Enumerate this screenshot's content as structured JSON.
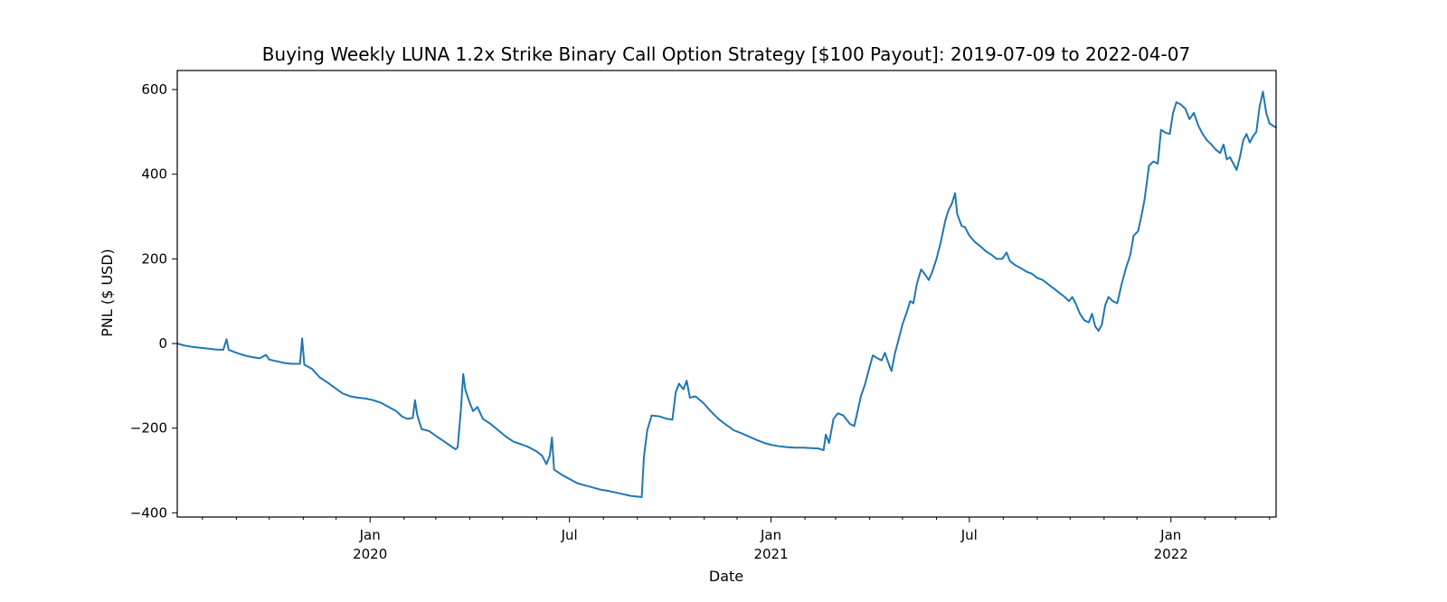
{
  "chart_data": {
    "type": "line",
    "title": "Buying Weekly LUNA 1.2x Strike Binary Call Option Strategy [$100 Payout]: 2019-07-09 to 2022-04-07",
    "xlabel": "Date",
    "ylabel": "PNL ($ USD)",
    "xlim": [
      "2019-07-09",
      "2022-04-07"
    ],
    "ylim": [
      -410,
      645
    ],
    "grid": false,
    "line_color": "#1f77b4",
    "y_ticks": [
      {
        "value": -400,
        "label": "−400"
      },
      {
        "value": -200,
        "label": "−200"
      },
      {
        "value": 0,
        "label": "0"
      },
      {
        "value": 200,
        "label": "200"
      },
      {
        "value": 400,
        "label": "400"
      },
      {
        "value": 600,
        "label": "600"
      }
    ],
    "x_major_ticks": [
      {
        "date": "2020-01-01",
        "label": "Jan",
        "sublabel": "2020"
      },
      {
        "date": "2020-07-01",
        "label": "Jul",
        "sublabel": ""
      },
      {
        "date": "2021-01-01",
        "label": "Jan",
        "sublabel": "2021"
      },
      {
        "date": "2021-07-01",
        "label": "Jul",
        "sublabel": ""
      },
      {
        "date": "2022-01-01",
        "label": "Jan",
        "sublabel": "2022"
      }
    ],
    "x_minor_ticks": [
      "2019-08-01",
      "2019-09-01",
      "2019-10-01",
      "2019-11-01",
      "2019-12-01",
      "2020-02-01",
      "2020-03-01",
      "2020-04-01",
      "2020-05-01",
      "2020-06-01",
      "2020-08-01",
      "2020-09-01",
      "2020-10-01",
      "2020-11-01",
      "2020-12-01",
      "2021-02-01",
      "2021-03-01",
      "2021-04-01",
      "2021-05-01",
      "2021-06-01",
      "2021-08-01",
      "2021-09-01",
      "2021-10-01",
      "2021-11-01",
      "2021-12-01",
      "2022-02-01",
      "2022-03-01",
      "2022-04-01"
    ],
    "series": [
      {
        "name": "",
        "points": [
          [
            "2019-07-09",
            0
          ],
          [
            "2019-07-16",
            -5
          ],
          [
            "2019-07-23",
            -8
          ],
          [
            "2019-07-30",
            -10
          ],
          [
            "2019-08-06",
            -12
          ],
          [
            "2019-08-13",
            -14
          ],
          [
            "2019-08-20",
            -15
          ],
          [
            "2019-08-23",
            10
          ],
          [
            "2019-08-25",
            -15
          ],
          [
            "2019-09-01",
            -22
          ],
          [
            "2019-09-08",
            -28
          ],
          [
            "2019-09-15",
            -32
          ],
          [
            "2019-09-22",
            -35
          ],
          [
            "2019-09-28",
            -27
          ],
          [
            "2019-10-01",
            -38
          ],
          [
            "2019-10-08",
            -42
          ],
          [
            "2019-10-15",
            -46
          ],
          [
            "2019-10-22",
            -48
          ],
          [
            "2019-10-29",
            -48
          ],
          [
            "2019-10-31",
            12
          ],
          [
            "2019-11-02",
            -50
          ],
          [
            "2019-11-09",
            -60
          ],
          [
            "2019-11-16",
            -80
          ],
          [
            "2019-11-23",
            -92
          ],
          [
            "2019-11-30",
            -105
          ],
          [
            "2019-12-07",
            -118
          ],
          [
            "2019-12-14",
            -125
          ],
          [
            "2019-12-21",
            -128
          ],
          [
            "2019-12-28",
            -130
          ],
          [
            "2020-01-04",
            -134
          ],
          [
            "2020-01-11",
            -140
          ],
          [
            "2020-01-18",
            -150
          ],
          [
            "2020-01-25",
            -160
          ],
          [
            "2020-01-30",
            -172
          ],
          [
            "2020-02-04",
            -178
          ],
          [
            "2020-02-09",
            -176
          ],
          [
            "2020-02-11",
            -134
          ],
          [
            "2020-02-13",
            -168
          ],
          [
            "2020-02-17",
            -202
          ],
          [
            "2020-02-24",
            -207
          ],
          [
            "2020-03-02",
            -220
          ],
          [
            "2020-03-09",
            -232
          ],
          [
            "2020-03-16",
            -245
          ],
          [
            "2020-03-19",
            -250
          ],
          [
            "2020-03-21",
            -245
          ],
          [
            "2020-03-24",
            -155
          ],
          [
            "2020-03-26",
            -72
          ],
          [
            "2020-03-28",
            -110
          ],
          [
            "2020-04-01",
            -140
          ],
          [
            "2020-04-04",
            -160
          ],
          [
            "2020-04-08",
            -150
          ],
          [
            "2020-04-13",
            -178
          ],
          [
            "2020-04-20",
            -190
          ],
          [
            "2020-04-27",
            -205
          ],
          [
            "2020-05-04",
            -220
          ],
          [
            "2020-05-11",
            -232
          ],
          [
            "2020-05-18",
            -238
          ],
          [
            "2020-05-25",
            -245
          ],
          [
            "2020-06-01",
            -255
          ],
          [
            "2020-06-06",
            -265
          ],
          [
            "2020-06-10",
            -285
          ],
          [
            "2020-06-13",
            -265
          ],
          [
            "2020-06-15",
            -222
          ],
          [
            "2020-06-17",
            -298
          ],
          [
            "2020-06-24",
            -310
          ],
          [
            "2020-07-01",
            -320
          ],
          [
            "2020-07-08",
            -330
          ],
          [
            "2020-07-15",
            -335
          ],
          [
            "2020-07-22",
            -340
          ],
          [
            "2020-07-29",
            -345
          ],
          [
            "2020-08-05",
            -348
          ],
          [
            "2020-08-12",
            -352
          ],
          [
            "2020-08-19",
            -356
          ],
          [
            "2020-08-26",
            -360
          ],
          [
            "2020-09-02",
            -362
          ],
          [
            "2020-09-05",
            -363
          ],
          [
            "2020-09-07",
            -268
          ],
          [
            "2020-09-10",
            -205
          ],
          [
            "2020-09-14",
            -170
          ],
          [
            "2020-09-21",
            -172
          ],
          [
            "2020-09-28",
            -178
          ],
          [
            "2020-10-03",
            -180
          ],
          [
            "2020-10-06",
            -115
          ],
          [
            "2020-10-09",
            -95
          ],
          [
            "2020-10-13",
            -108
          ],
          [
            "2020-10-16",
            -88
          ],
          [
            "2020-10-19",
            -128
          ],
          [
            "2020-10-24",
            -125
          ],
          [
            "2020-10-31",
            -140
          ],
          [
            "2020-11-07",
            -160
          ],
          [
            "2020-11-14",
            -178
          ],
          [
            "2020-11-21",
            -192
          ],
          [
            "2020-11-28",
            -205
          ],
          [
            "2020-12-05",
            -212
          ],
          [
            "2020-12-12",
            -220
          ],
          [
            "2020-12-19",
            -228
          ],
          [
            "2020-12-26",
            -235
          ],
          [
            "2021-01-02",
            -240
          ],
          [
            "2021-01-09",
            -243
          ],
          [
            "2021-01-16",
            -245
          ],
          [
            "2021-01-23",
            -246
          ],
          [
            "2021-01-30",
            -246
          ],
          [
            "2021-02-06",
            -247
          ],
          [
            "2021-02-13",
            -248
          ],
          [
            "2021-02-18",
            -252
          ],
          [
            "2021-02-20",
            -215
          ],
          [
            "2021-02-23",
            -235
          ],
          [
            "2021-02-27",
            -178
          ],
          [
            "2021-03-03",
            -165
          ],
          [
            "2021-03-08",
            -170
          ],
          [
            "2021-03-14",
            -190
          ],
          [
            "2021-03-18",
            -195
          ],
          [
            "2021-03-21",
            -160
          ],
          [
            "2021-03-24",
            -125
          ],
          [
            "2021-03-28",
            -95
          ],
          [
            "2021-04-01",
            -55
          ],
          [
            "2021-04-04",
            -28
          ],
          [
            "2021-04-08",
            -35
          ],
          [
            "2021-04-12",
            -40
          ],
          [
            "2021-04-15",
            -22
          ],
          [
            "2021-04-18",
            -45
          ],
          [
            "2021-04-21",
            -65
          ],
          [
            "2021-04-24",
            -25
          ],
          [
            "2021-04-28",
            15
          ],
          [
            "2021-05-01",
            45
          ],
          [
            "2021-05-05",
            75
          ],
          [
            "2021-05-08",
            100
          ],
          [
            "2021-05-11",
            95
          ],
          [
            "2021-05-14",
            140
          ],
          [
            "2021-05-18",
            175
          ],
          [
            "2021-05-21",
            165
          ],
          [
            "2021-05-25",
            150
          ],
          [
            "2021-05-28",
            168
          ],
          [
            "2021-06-01",
            200
          ],
          [
            "2021-06-05",
            240
          ],
          [
            "2021-06-09",
            290
          ],
          [
            "2021-06-12",
            315
          ],
          [
            "2021-06-15",
            330
          ],
          [
            "2021-06-18",
            355
          ],
          [
            "2021-06-20",
            305
          ],
          [
            "2021-06-24",
            278
          ],
          [
            "2021-06-27",
            275
          ],
          [
            "2021-07-01",
            255
          ],
          [
            "2021-07-06",
            240
          ],
          [
            "2021-07-11",
            230
          ],
          [
            "2021-07-16",
            218
          ],
          [
            "2021-07-21",
            210
          ],
          [
            "2021-07-26",
            200
          ],
          [
            "2021-07-31",
            200
          ],
          [
            "2021-08-04",
            215
          ],
          [
            "2021-08-07",
            195
          ],
          [
            "2021-08-12",
            185
          ],
          [
            "2021-08-17",
            178
          ],
          [
            "2021-08-22",
            170
          ],
          [
            "2021-08-27",
            165
          ],
          [
            "2021-09-01",
            155
          ],
          [
            "2021-09-06",
            150
          ],
          [
            "2021-09-11",
            140
          ],
          [
            "2021-09-16",
            130
          ],
          [
            "2021-09-21",
            120
          ],
          [
            "2021-09-26",
            110
          ],
          [
            "2021-09-30",
            100
          ],
          [
            "2021-10-03",
            110
          ],
          [
            "2021-10-06",
            95
          ],
          [
            "2021-10-10",
            70
          ],
          [
            "2021-10-14",
            55
          ],
          [
            "2021-10-18",
            50
          ],
          [
            "2021-10-21",
            70
          ],
          [
            "2021-10-24",
            40
          ],
          [
            "2021-10-27",
            30
          ],
          [
            "2021-10-30",
            45
          ],
          [
            "2021-11-02",
            90
          ],
          [
            "2021-11-05",
            110
          ],
          [
            "2021-11-09",
            100
          ],
          [
            "2021-11-13",
            95
          ],
          [
            "2021-11-17",
            140
          ],
          [
            "2021-11-21",
            178
          ],
          [
            "2021-11-25",
            210
          ],
          [
            "2021-11-28",
            255
          ],
          [
            "2021-12-02",
            265
          ],
          [
            "2021-12-05",
            300
          ],
          [
            "2021-12-08",
            340
          ],
          [
            "2021-12-12",
            420
          ],
          [
            "2021-12-16",
            430
          ],
          [
            "2021-12-20",
            425
          ],
          [
            "2021-12-23",
            505
          ],
          [
            "2021-12-27",
            498
          ],
          [
            "2021-12-31",
            495
          ],
          [
            "2022-01-03",
            545
          ],
          [
            "2022-01-06",
            570
          ],
          [
            "2022-01-10",
            565
          ],
          [
            "2022-01-14",
            555
          ],
          [
            "2022-01-18",
            530
          ],
          [
            "2022-01-22",
            545
          ],
          [
            "2022-01-26",
            515
          ],
          [
            "2022-01-30",
            495
          ],
          [
            "2022-02-03",
            480
          ],
          [
            "2022-02-07",
            470
          ],
          [
            "2022-02-11",
            458
          ],
          [
            "2022-02-15",
            450
          ],
          [
            "2022-02-18",
            470
          ],
          [
            "2022-02-21",
            435
          ],
          [
            "2022-02-24",
            440
          ],
          [
            "2022-02-27",
            425
          ],
          [
            "2022-03-02",
            410
          ],
          [
            "2022-03-05",
            440
          ],
          [
            "2022-03-08",
            480
          ],
          [
            "2022-03-11",
            495
          ],
          [
            "2022-03-14",
            475
          ],
          [
            "2022-03-17",
            490
          ],
          [
            "2022-03-20",
            500
          ],
          [
            "2022-03-23",
            560
          ],
          [
            "2022-03-26",
            595
          ],
          [
            "2022-03-29",
            545
          ],
          [
            "2022-04-01",
            520
          ],
          [
            "2022-04-07",
            510
          ]
        ]
      }
    ]
  }
}
